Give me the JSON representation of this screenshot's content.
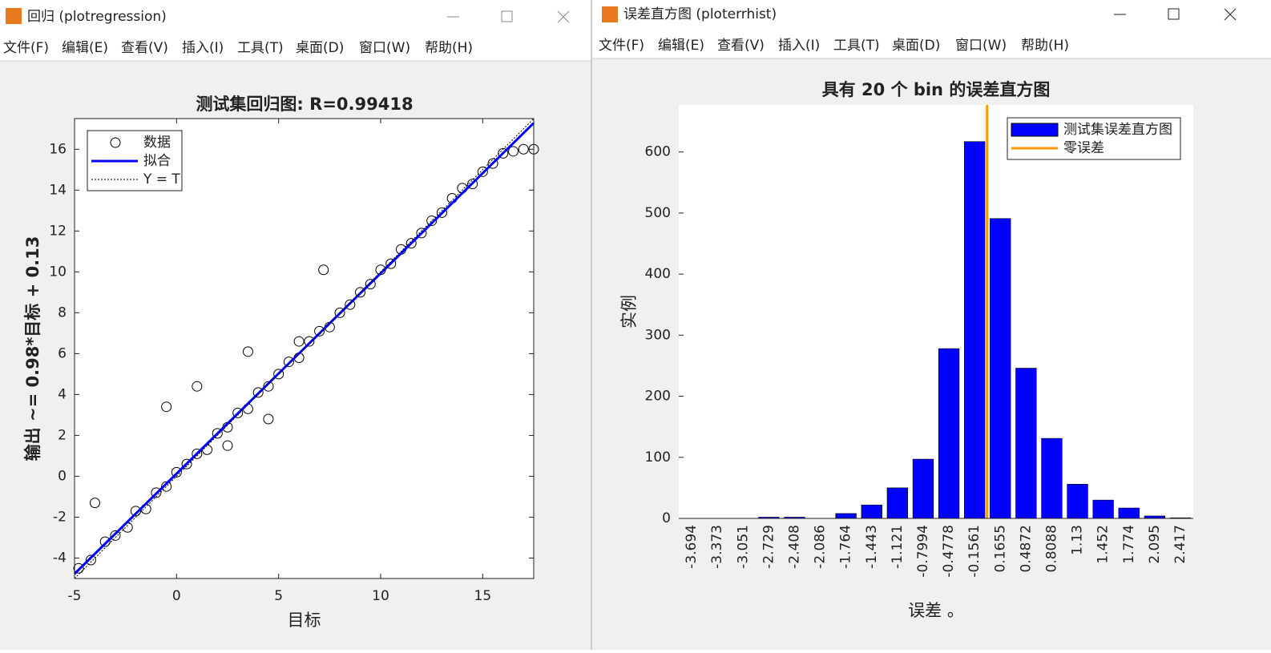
{
  "windows": [
    {
      "title": "回归 (plotregression)",
      "menus": [
        "文件(F)",
        "编辑(E)",
        "查看(V)",
        "插入(I)",
        "工具(T)",
        "桌面(D)",
        "窗口(W)",
        "帮助(H)"
      ]
    },
    {
      "title": "误差直方图 (ploterrhist)",
      "menus": [
        "文件(F)",
        "编辑(E)",
        "查看(V)",
        "插入(I)",
        "工具(T)",
        "桌面(D)",
        "窗口(W)",
        "帮助(H)"
      ]
    }
  ],
  "chart_data": [
    {
      "type": "scatter",
      "title": "测试集回归图: R=0.99418",
      "x_label": "目标",
      "y_label": "输出 ~= 0.98*目标 + 0.13",
      "xlim": [
        -5,
        17.5
      ],
      "ylim": [
        -5,
        17.5
      ],
      "xticks": [
        -5,
        0,
        5,
        10,
        15
      ],
      "yticks": [
        -4,
        -2,
        0,
        2,
        4,
        6,
        8,
        10,
        12,
        14,
        16
      ],
      "legend": "upper left",
      "series": [
        {
          "name": "数据",
          "color": "#000000",
          "style": "markers",
          "x": [
            -4.8,
            -4.2,
            -3.5,
            -3,
            -2.4,
            -2,
            -1.5,
            -1,
            -0.5,
            0,
            0.5,
            1,
            1.5,
            2,
            2.5,
            3,
            3.5,
            4,
            4.5,
            5,
            5.5,
            6,
            6.5,
            7,
            7.2,
            7.5,
            8,
            8.5,
            9,
            9.5,
            10,
            10.5,
            11,
            11.5,
            12,
            12.5,
            13,
            13.5,
            14,
            14.5,
            15,
            15.5,
            16,
            16.5,
            17,
            17.5,
            -0.5,
            1,
            3.5,
            4.5,
            -4,
            2.5,
            6
          ],
          "values": [
            -4.5,
            -4.1,
            -3.2,
            -2.9,
            -2.5,
            -1.7,
            -1.6,
            -0.8,
            -0.5,
            0.2,
            0.6,
            1.1,
            1.3,
            2.1,
            2.4,
            3.1,
            3.3,
            4.1,
            4.4,
            5.0,
            5.6,
            5.8,
            6.6,
            7.1,
            10.1,
            7.3,
            8.0,
            8.4,
            9.0,
            9.4,
            10.1,
            10.4,
            11.1,
            11.4,
            11.9,
            12.5,
            12.9,
            13.6,
            14.1,
            14.3,
            14.9,
            15.3,
            15.8,
            15.9,
            16.0,
            16.0,
            3.4,
            4.4,
            6.1,
            2.8,
            -1.3,
            1.5,
            6.6
          ]
        },
        {
          "name": "拟合",
          "color": "#0000ff",
          "style": "line",
          "x": [
            -5,
            17.5
          ],
          "values": [
            -4.77,
            17.28
          ]
        },
        {
          "name": "Y = T",
          "color": "#000000",
          "style": "dotted",
          "x": [
            -5,
            17.5
          ],
          "values": [
            -5,
            17.5
          ]
        }
      ]
    },
    {
      "type": "bar",
      "title": "具有 20 个 bin 的误差直方图",
      "x_label": "误差 。",
      "y_label": "实例",
      "categories": [
        "-3.694",
        "-3.373",
        "-3.051",
        "-2.729",
        "-2.408",
        "-2.086",
        "-1.764",
        "-1.443",
        "-1.121",
        "-0.7994",
        "-0.4778",
        "-0.1561",
        "0.1655",
        "0.4872",
        "0.8088",
        "1.13",
        "1.452",
        "1.774",
        "2.095",
        "2.417"
      ],
      "ylim": [
        0,
        677
      ],
      "yticks": [
        0,
        100,
        200,
        300,
        400,
        500,
        600
      ],
      "legend": "upper right",
      "series": [
        {
          "name": "测试集误差直方图",
          "color": "#0000ff",
          "values": [
            0,
            0,
            0,
            2,
            2,
            0,
            8,
            22,
            50,
            97,
            278,
            617,
            491,
            246,
            131,
            56,
            30,
            17,
            4,
            1
          ]
        }
      ],
      "reference_lines": [
        {
          "name": "零误差",
          "color": "#ff9900",
          "x": 0
        }
      ]
    }
  ]
}
